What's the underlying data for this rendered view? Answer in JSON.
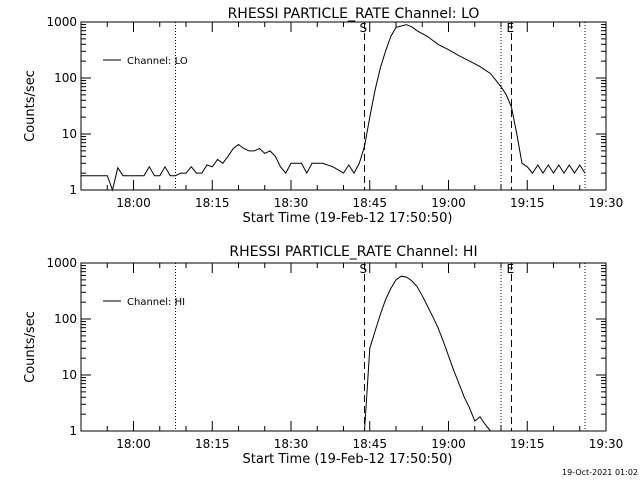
{
  "footer_timestamp": "19-Oct-2021 01:02",
  "chart_data": [
    {
      "type": "line",
      "title": "RHESSI PARTICLE_RATE Channel: LO",
      "xlabel": "Start Time (19-Feb-12 17:50:50)",
      "ylabel": "Counts/sec",
      "yscale": "log",
      "xlim_minutes_from_start": [
        0,
        100
      ],
      "ylim": [
        1,
        1000
      ],
      "xtick_labels": [
        "18:00",
        "18:15",
        "18:30",
        "18:45",
        "19:00",
        "19:15",
        "19:30"
      ],
      "ytick_labels": [
        "1",
        "10",
        "100",
        "1000"
      ],
      "legend": {
        "label": "Channel: LO",
        "position": "top-left"
      },
      "markers": [
        {
          "label": "S",
          "time": "18:44",
          "style": "dashed"
        },
        {
          "label": "E",
          "time": "19:12",
          "style": "dashed"
        }
      ],
      "dotted_lines": [
        "18:08",
        "19:10",
        "19:26"
      ],
      "series": [
        {
          "name": "Channel: LO",
          "x": [
            "17:50",
            "17:55",
            "17:56",
            "17:57",
            "17:58",
            "17:59",
            "18:02",
            "18:03",
            "18:04",
            "18:05",
            "18:06",
            "18:07",
            "18:08",
            "18:09",
            "18:10",
            "18:11",
            "18:12",
            "18:13",
            "18:14",
            "18:15",
            "18:16",
            "18:17",
            "18:18",
            "18:19",
            "18:20",
            "18:21",
            "18:22",
            "18:23",
            "18:24",
            "18:25",
            "18:26",
            "18:27",
            "18:28",
            "18:29",
            "18:30",
            "18:31",
            "18:32",
            "18:33",
            "18:34",
            "18:36",
            "18:38",
            "18:40",
            "18:41",
            "18:42",
            "18:43",
            "18:44",
            "18:45",
            "18:46",
            "18:47",
            "18:48",
            "18:49",
            "18:50",
            "18:52",
            "18:53",
            "18:54",
            "18:56",
            "18:58",
            "19:00",
            "19:02",
            "19:04",
            "19:06",
            "19:08",
            "19:10",
            "19:11",
            "19:12",
            "19:13",
            "19:14",
            "19:15",
            "19:16",
            "19:17",
            "19:18",
            "19:19",
            "19:20",
            "19:21",
            "19:22",
            "19:23",
            "19:24",
            "19:25",
            "19:26"
          ],
          "y": [
            1.8,
            1.8,
            1.0,
            2.5,
            1.8,
            1.8,
            1.8,
            2.6,
            1.8,
            1.8,
            2.6,
            1.8,
            1.8,
            2.0,
            2.0,
            2.6,
            2.0,
            2.0,
            2.8,
            2.6,
            3.5,
            3.0,
            4.0,
            5.5,
            6.5,
            5.5,
            5.0,
            5.0,
            5.5,
            4.5,
            5.0,
            4.0,
            2.6,
            2.0,
            3.0,
            3.0,
            3.0,
            2.0,
            3.0,
            3.0,
            2.6,
            2.0,
            2.8,
            2.0,
            3.0,
            6,
            20,
            60,
            150,
            300,
            550,
            800,
            900,
            820,
            700,
            550,
            400,
            320,
            250,
            200,
            160,
            120,
            70,
            50,
            30,
            10,
            3,
            2.6,
            2.0,
            2.8,
            2.0,
            2.8,
            2.0,
            2.8,
            2.0,
            2.8,
            2.0,
            2.8,
            2.0
          ]
        }
      ]
    },
    {
      "type": "line",
      "title": "RHESSI PARTICLE_RATE Channel: HI",
      "xlabel": "Start Time (19-Feb-12 17:50:50)",
      "ylabel": "Counts/sec",
      "yscale": "log",
      "xlim_minutes_from_start": [
        0,
        100
      ],
      "ylim": [
        1,
        1000
      ],
      "xtick_labels": [
        "18:00",
        "18:15",
        "18:30",
        "18:45",
        "19:00",
        "19:15",
        "19:30"
      ],
      "ytick_labels": [
        "1",
        "10",
        "100",
        "1000"
      ],
      "legend": {
        "label": "Channel: HI",
        "position": "top-left"
      },
      "markers": [
        {
          "label": "S",
          "time": "18:44",
          "style": "dashed"
        },
        {
          "label": "E",
          "time": "19:12",
          "style": "dashed"
        }
      ],
      "dotted_lines": [
        "18:08",
        "19:10",
        "19:26"
      ],
      "series": [
        {
          "name": "Channel: HI",
          "x": [
            "18:44",
            "18:45",
            "18:46",
            "18:47",
            "18:48",
            "18:49",
            "18:50",
            "18:51",
            "18:52",
            "18:53",
            "18:54",
            "18:55",
            "18:56",
            "18:57",
            "18:58",
            "18:59",
            "19:00",
            "19:01",
            "19:02",
            "19:03",
            "19:04",
            "19:05",
            "19:06",
            "19:07",
            "19:08"
          ],
          "y": [
            1,
            30,
            60,
            120,
            220,
            350,
            500,
            580,
            560,
            480,
            380,
            260,
            170,
            110,
            70,
            40,
            22,
            12,
            7,
            4,
            2.6,
            1.5,
            1.8,
            1.3,
            1
          ]
        }
      ]
    }
  ]
}
